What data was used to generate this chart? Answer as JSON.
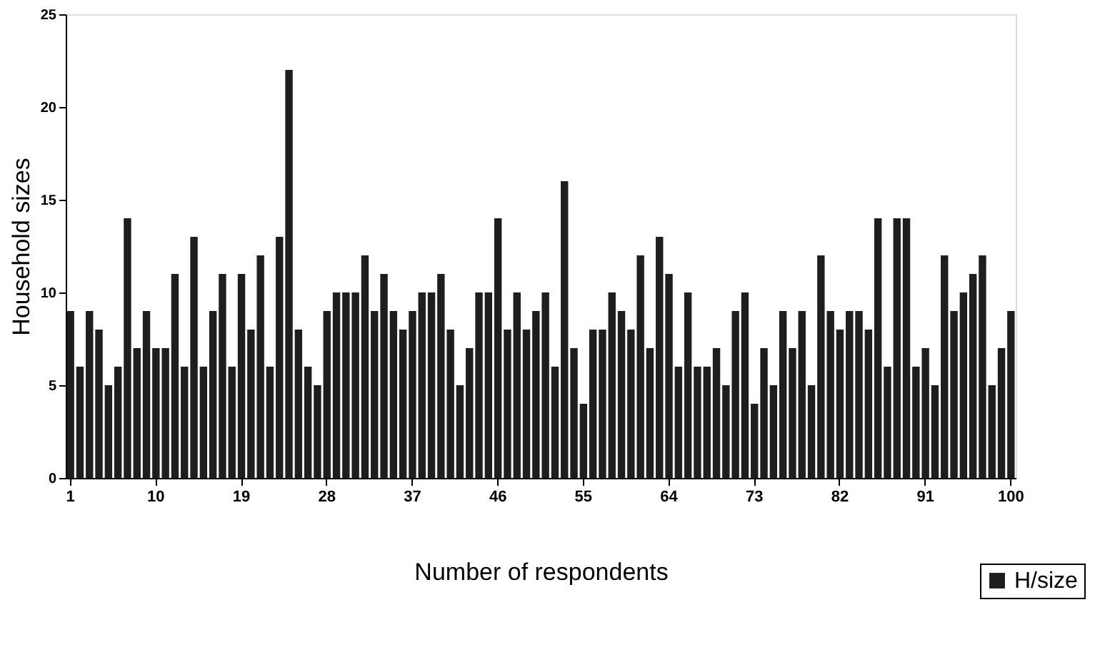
{
  "chart_data": {
    "type": "bar",
    "xlabel": "Number of respondents",
    "ylabel": "Household sizes",
    "categories": [
      "1",
      null,
      null,
      null,
      null,
      null,
      null,
      null,
      null,
      "10",
      null,
      null,
      null,
      null,
      null,
      null,
      null,
      null,
      "19",
      null,
      null,
      null,
      null,
      null,
      null,
      null,
      null,
      "28",
      null,
      null,
      null,
      null,
      null,
      null,
      null,
      null,
      "37",
      null,
      null,
      null,
      null,
      null,
      null,
      null,
      null,
      "46",
      null,
      null,
      null,
      null,
      null,
      null,
      null,
      null,
      "55",
      null,
      null,
      null,
      null,
      null,
      null,
      null,
      null,
      "64",
      null,
      null,
      null,
      null,
      null,
      null,
      null,
      null,
      "73",
      null,
      null,
      null,
      null,
      null,
      null,
      null,
      null,
      "82",
      null,
      null,
      null,
      null,
      null,
      null,
      null,
      null,
      "91",
      null,
      null,
      null,
      null,
      null,
      null,
      null,
      null,
      "100"
    ],
    "series": [
      {
        "name": "H/size",
        "color": "#1e1e1e",
        "values": [
          9,
          6,
          9,
          8,
          5,
          6,
          14,
          7,
          9,
          7,
          7,
          11,
          6,
          13,
          6,
          9,
          11,
          6,
          11,
          8,
          12,
          6,
          13,
          22,
          8,
          6,
          5,
          9,
          10,
          10,
          10,
          12,
          9,
          11,
          9,
          8,
          9,
          10,
          10,
          11,
          8,
          5,
          7,
          10,
          10,
          14,
          8,
          10,
          8,
          9,
          10,
          6,
          16,
          7,
          4,
          8,
          8,
          10,
          9,
          8,
          12,
          7,
          13,
          11,
          6,
          10,
          6,
          6,
          7,
          5,
          9,
          10,
          4,
          7,
          5,
          9,
          7,
          9,
          5,
          12,
          9,
          8,
          9,
          9,
          8,
          14,
          6,
          14,
          14,
          6,
          7,
          5,
          12,
          9,
          10,
          11,
          12,
          5,
          7,
          9
        ]
      }
    ],
    "ylim": [
      0,
      25
    ],
    "yticks": [
      0,
      5,
      10,
      15,
      20,
      25
    ],
    "grid": false,
    "legend": "bottom right"
  }
}
